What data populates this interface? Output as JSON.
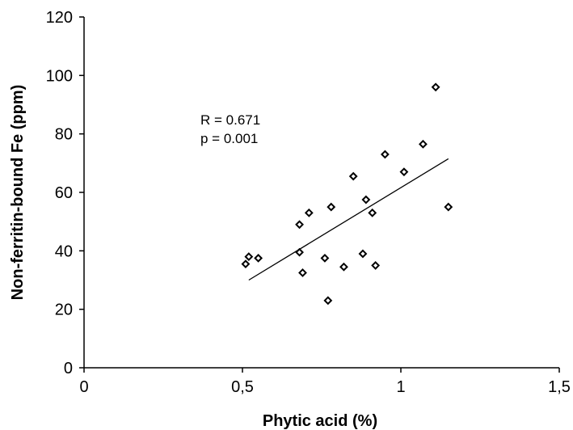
{
  "chart_data": {
    "type": "scatter",
    "title": "",
    "xlabel": "Phytic acid (%)",
    "ylabel": "Non-ferritin-bound  Fe (ppm)",
    "xlim": [
      0,
      1.5
    ],
    "ylim": [
      0,
      120
    ],
    "x_ticks": [
      0,
      0.5,
      1,
      1.5
    ],
    "x_tick_labels": [
      "0",
      "0,5",
      "1",
      "1,5"
    ],
    "y_ticks": [
      0,
      20,
      40,
      60,
      80,
      100,
      120
    ],
    "y_tick_labels": [
      "0",
      "20",
      "40",
      "60",
      "80",
      "100",
      "120"
    ],
    "grid": false,
    "legend": "none",
    "marker": "diamond-open",
    "points": [
      {
        "x": 0.51,
        "y": 35.5
      },
      {
        "x": 0.52,
        "y": 38
      },
      {
        "x": 0.55,
        "y": 37.5
      },
      {
        "x": 0.68,
        "y": 49
      },
      {
        "x": 0.68,
        "y": 39.5
      },
      {
        "x": 0.69,
        "y": 32.5
      },
      {
        "x": 0.71,
        "y": 53
      },
      {
        "x": 0.76,
        "y": 37.5
      },
      {
        "x": 0.77,
        "y": 23
      },
      {
        "x": 0.78,
        "y": 55
      },
      {
        "x": 0.82,
        "y": 34.5
      },
      {
        "x": 0.85,
        "y": 65.5
      },
      {
        "x": 0.88,
        "y": 39
      },
      {
        "x": 0.89,
        "y": 57.5
      },
      {
        "x": 0.91,
        "y": 53
      },
      {
        "x": 0.92,
        "y": 35
      },
      {
        "x": 0.95,
        "y": 73
      },
      {
        "x": 1.01,
        "y": 67
      },
      {
        "x": 1.07,
        "y": 76.5
      },
      {
        "x": 1.11,
        "y": 96
      },
      {
        "x": 1.15,
        "y": 55
      }
    ],
    "trendline": {
      "type": "linear",
      "x_start": 0.52,
      "y_start": 30,
      "x_end": 1.15,
      "y_end": 71.5
    },
    "annotations": [
      "R = 0.671",
      "p = 0.001"
    ],
    "colors": {
      "marker_stroke": "#000000",
      "marker_fill": "#ffffff",
      "axis": "#000000",
      "trendline": "#000000"
    }
  }
}
